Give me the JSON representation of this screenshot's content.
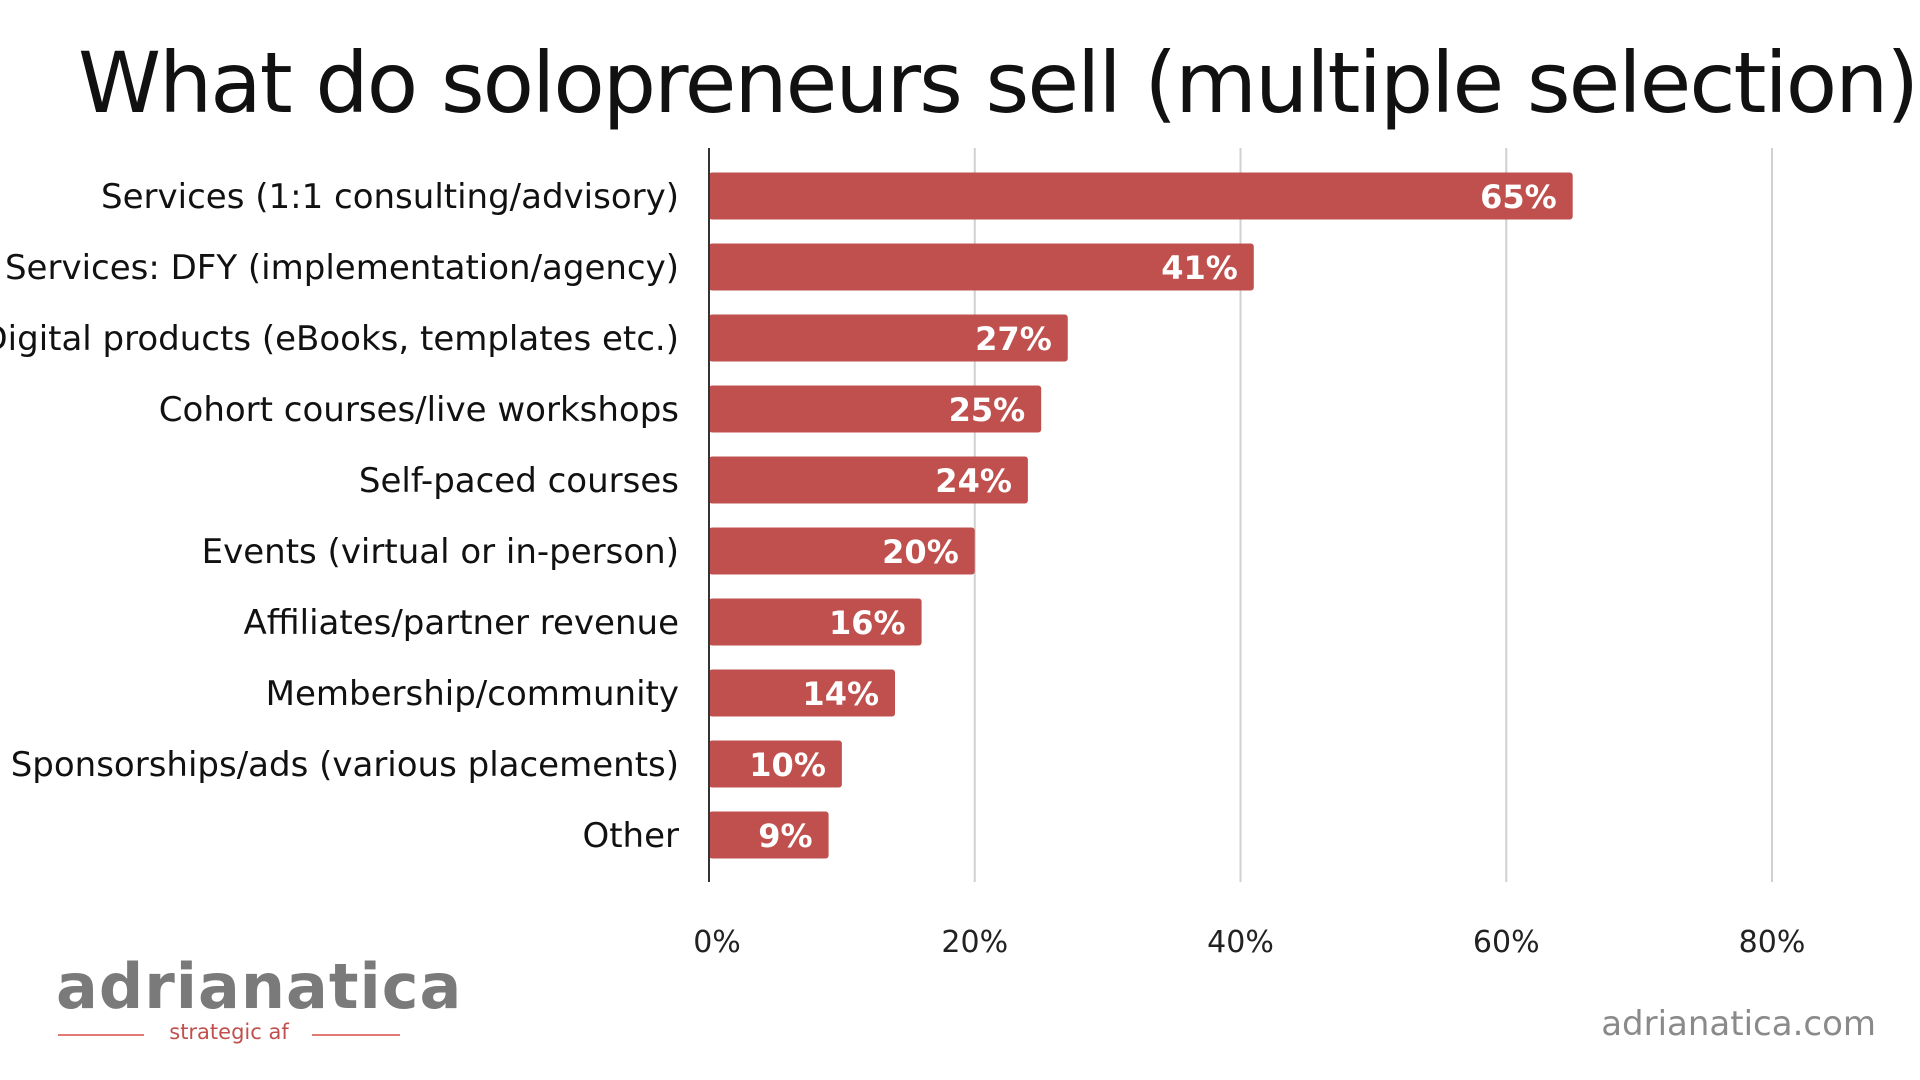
{
  "chart_data": {
    "type": "bar",
    "orientation": "horizontal",
    "title": "What do solopreneurs sell (multiple selection)",
    "categories": [
      "Services (1:1 consulting/advisory)",
      "Services: DFY (implementation/agency)",
      "Digital products (eBooks, templates etc.)",
      "Cohort courses/live workshops",
      "Self-paced courses",
      "Events (virtual or in-person)",
      "Affiliates/partner revenue",
      "Membership/community",
      "Sponsorships/ads (various placements)",
      "Other"
    ],
    "values": [
      65,
      41,
      27,
      25,
      24,
      20,
      16,
      14,
      10,
      9
    ],
    "data_labels": [
      "65%",
      "41%",
      "27%",
      "25%",
      "24%",
      "20%",
      "16%",
      "14%",
      "10%",
      "9%"
    ],
    "x_ticks": [
      0,
      20,
      40,
      60,
      80
    ],
    "x_tick_labels": [
      "0%",
      "20%",
      "40%",
      "60%",
      "80%"
    ],
    "xlim": [
      0,
      80
    ],
    "unit": "%",
    "grid": true,
    "legend": "none",
    "bar_color": "#c0504d",
    "grid_color": "#d0d0d0"
  },
  "branding": {
    "logo_text": "adrianatica",
    "tagline": "strategic af",
    "website": "adrianatica.com"
  }
}
